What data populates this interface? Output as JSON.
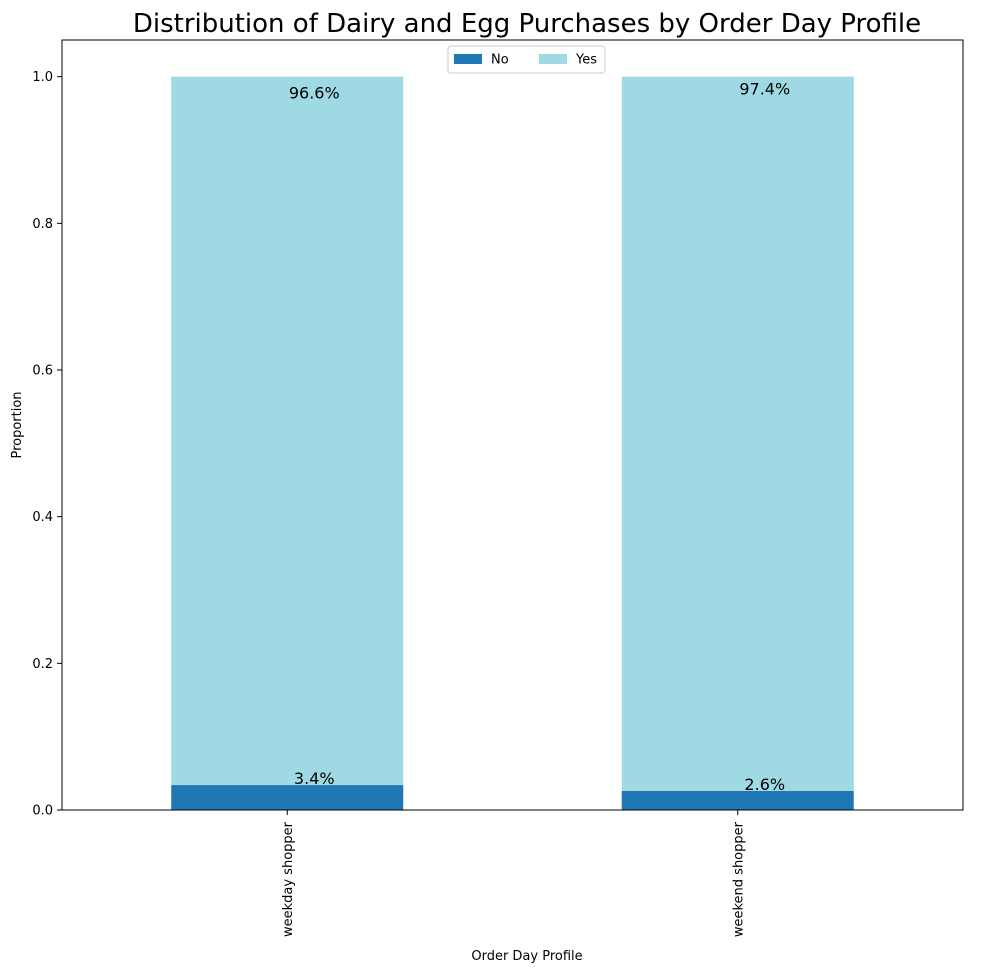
{
  "chart_data": {
    "type": "bar",
    "stacked": true,
    "title": "Distribution of Dairy and Egg Purchases by Order Day Profile",
    "xlabel": "Order Day Profile",
    "ylabel": "Proportion",
    "categories": [
      "weekday shopper",
      "weekend shopper"
    ],
    "series": [
      {
        "name": "No",
        "color": "#1f77b4",
        "values": [
          0.034,
          0.026
        ],
        "labels": [
          "3.4%",
          "2.6%"
        ]
      },
      {
        "name": "Yes",
        "color": "#9fd9e4",
        "values": [
          0.966,
          0.974
        ],
        "labels": [
          "96.6%",
          "97.4%"
        ]
      }
    ],
    "ylim": [
      0.0,
      1.05
    ],
    "yticks": [
      "0.0",
      "0.2",
      "0.4",
      "0.6",
      "0.8",
      "1.0"
    ],
    "legend": {
      "placement": "upper center",
      "columns": 2
    },
    "grid": false
  }
}
